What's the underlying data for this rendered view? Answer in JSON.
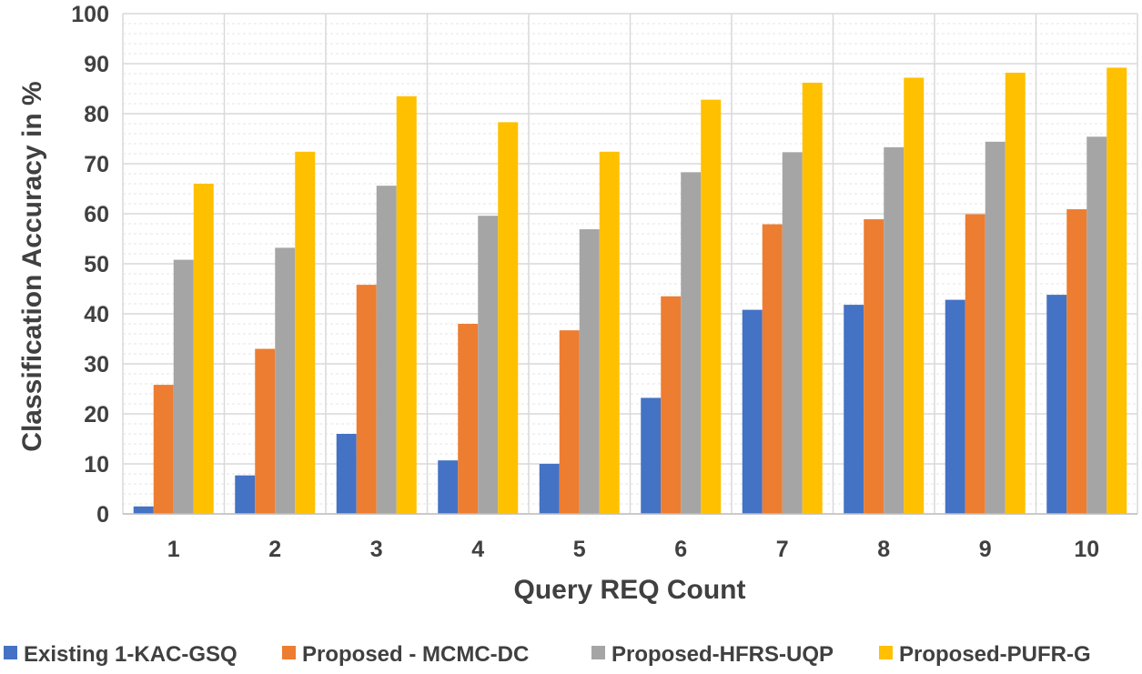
{
  "chart_data": {
    "type": "bar",
    "title": "",
    "xlabel": "Query REQ Count",
    "ylabel": "Classification Accuracy in %",
    "categories": [
      "1",
      "2",
      "3",
      "4",
      "5",
      "6",
      "7",
      "8",
      "9",
      "10"
    ],
    "ylim": [
      0,
      100
    ],
    "y_ticks": [
      "0",
      "10",
      "20",
      "30",
      "40",
      "50",
      "60",
      "70",
      "80",
      "90",
      "100"
    ],
    "grid": true,
    "legend_position": "bottom",
    "series": [
      {
        "name": "Existing 1-KAC-GSQ",
        "color": "#4472C4",
        "values": [
          1.5,
          7.7,
          16,
          10.7,
          10,
          23.2,
          40.8,
          41.8,
          42.8,
          43.8
        ]
      },
      {
        "name": "Proposed - MCMC-DC",
        "color": "#ED7D31",
        "values": [
          25.8,
          33,
          45.8,
          38,
          36.7,
          43.5,
          57.9,
          58.9,
          59.9,
          60.9
        ]
      },
      {
        "name": "Proposed-HFRS-UQP",
        "color": "#A5A5A5",
        "values": [
          50.8,
          53.2,
          65.6,
          59.6,
          56.9,
          68.3,
          72.3,
          73.3,
          74.4,
          75.4
        ]
      },
      {
        "name": "Proposed-PUFR-G",
        "color": "#FFC000",
        "values": [
          66,
          72.4,
          83.5,
          78.3,
          72.4,
          82.8,
          86.2,
          87.2,
          88.2,
          89.2
        ]
      }
    ]
  }
}
